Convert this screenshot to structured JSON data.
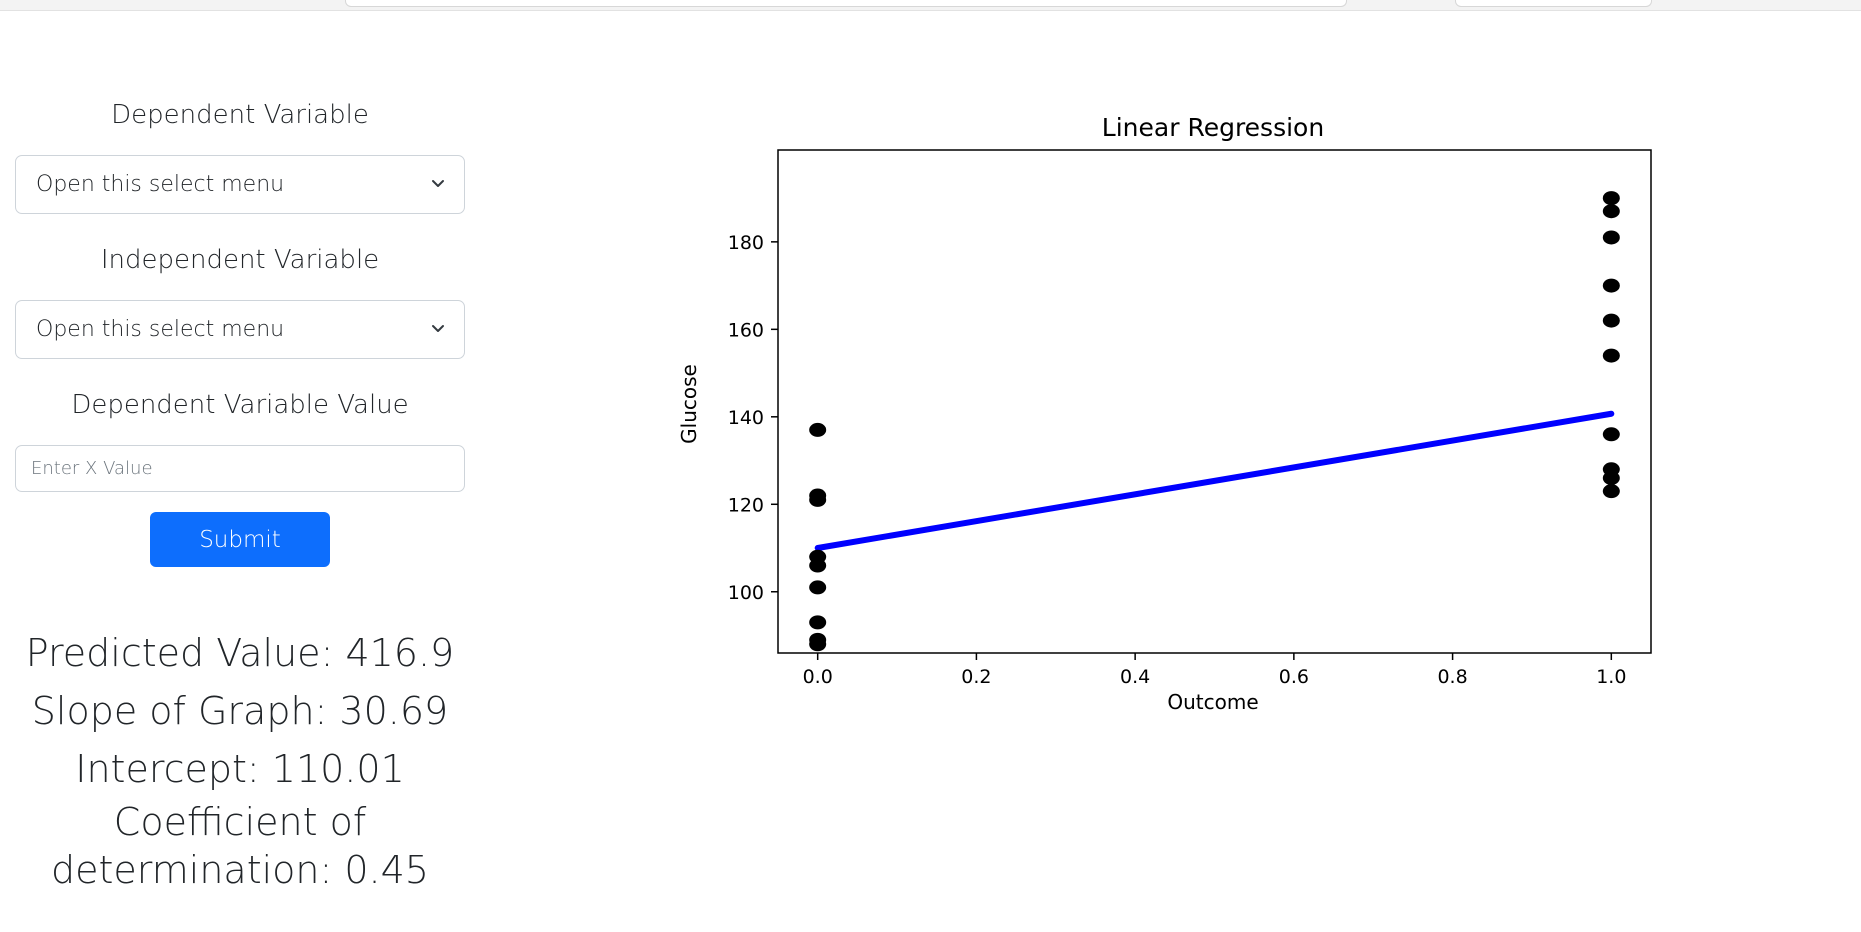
{
  "form": {
    "dependent_label": "Dependent Variable",
    "dependent_select_value": "Open this select menu",
    "independent_label": "Independent Variable",
    "independent_select_value": "Open this select menu",
    "value_label": "Dependent Variable Value",
    "value_placeholder": "Enter X Value",
    "submit_label": "Submit"
  },
  "results": {
    "predicted": "Predicted Value: 416.9",
    "slope": "Slope of Graph: 30.69",
    "intercept": "Intercept: 110.01",
    "r2_line1": "Coefficient of",
    "r2_line2": "determination: 0.45"
  },
  "chart_data": {
    "type": "scatter",
    "title": "Linear Regression",
    "xlabel": "Outcome",
    "ylabel": "Glucose",
    "xlim": [
      -0.05,
      1.05
    ],
    "ylim": [
      86,
      201
    ],
    "x_ticks": [
      "0.0",
      "0.2",
      "0.4",
      "0.6",
      "0.8",
      "1.0"
    ],
    "x_tick_values": [
      0,
      0.2,
      0.4,
      0.6,
      0.8,
      1.0
    ],
    "y_ticks": [
      "100",
      "120",
      "140",
      "160",
      "180"
    ],
    "y_tick_values": [
      100,
      120,
      140,
      160,
      180
    ],
    "points_color": "#000000",
    "line_color": "#0000ff",
    "points": [
      [
        0,
        137
      ],
      [
        0,
        122
      ],
      [
        0,
        121
      ],
      [
        0,
        108
      ],
      [
        0,
        106
      ],
      [
        0,
        101
      ],
      [
        0,
        93
      ],
      [
        0,
        89
      ],
      [
        0,
        88
      ],
      [
        1,
        190
      ],
      [
        1,
        187
      ],
      [
        1,
        181
      ],
      [
        1,
        170
      ],
      [
        1,
        162
      ],
      [
        1,
        154
      ],
      [
        1,
        136
      ],
      [
        1,
        128
      ],
      [
        1,
        126
      ],
      [
        1,
        123
      ]
    ],
    "regression_line": {
      "slope": 30.69,
      "intercept": 110.01
    }
  }
}
